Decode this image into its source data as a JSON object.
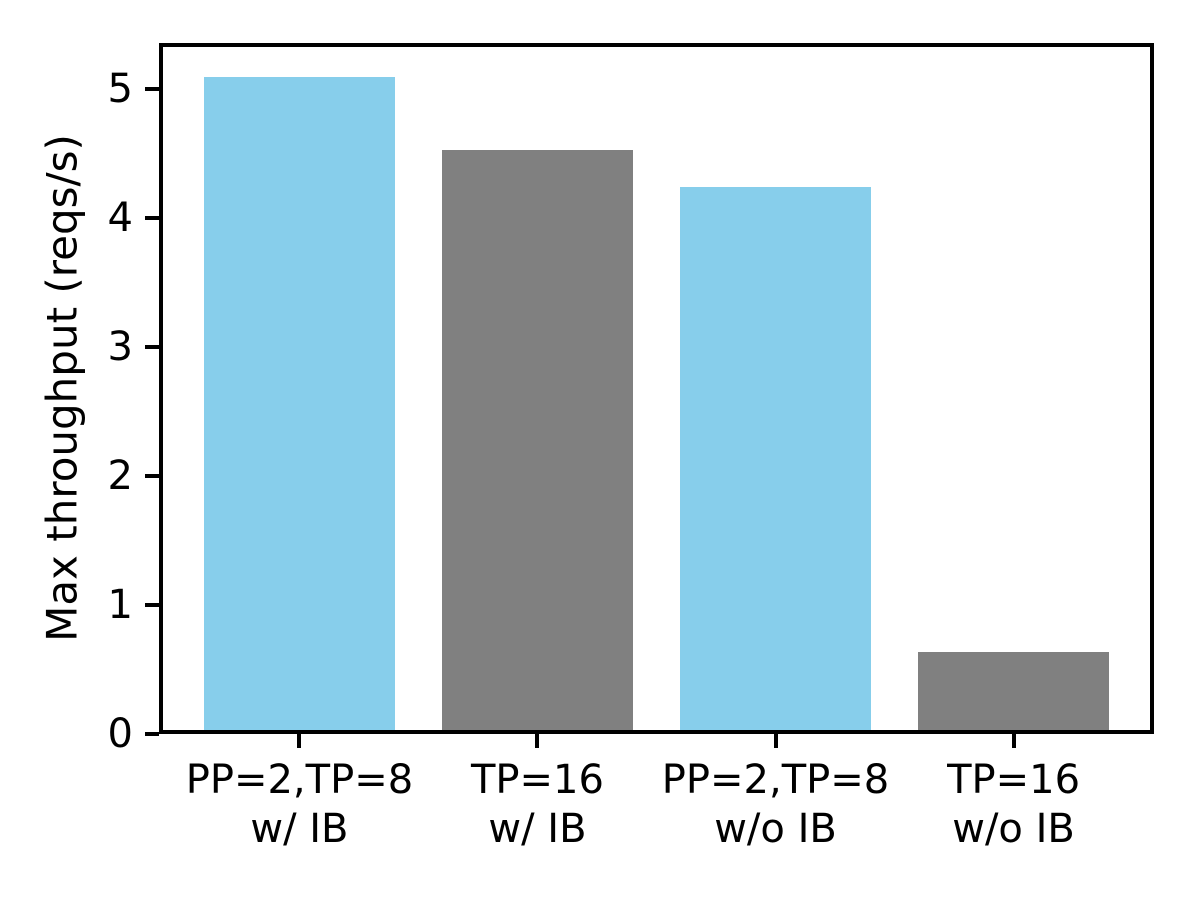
{
  "figure": {
    "background_color": "#ffffff",
    "axis_color": "#000000"
  },
  "chart_data": {
    "type": "bar",
    "title": "",
    "xlabel": "",
    "ylabel": "Max throughput (reqs/s)",
    "categories": [
      "PP=2,TP=8\nw/ IB",
      "TP=16\nw/ IB",
      "PP=2,TP=8\nw/o IB",
      "TP=16\nw/o IB"
    ],
    "values": [
      5.1,
      4.53,
      4.24,
      0.64
    ],
    "bar_colors": [
      "#87CEEB",
      "#808080",
      "#87CEEB",
      "#808080"
    ],
    "yticks": [
      0,
      1,
      2,
      3,
      4,
      5
    ],
    "ylim": [
      0,
      5.36
    ],
    "x_range": [
      -0.59,
      3.59
    ],
    "bar_width": 0.8,
    "grid": false,
    "legend": null
  }
}
